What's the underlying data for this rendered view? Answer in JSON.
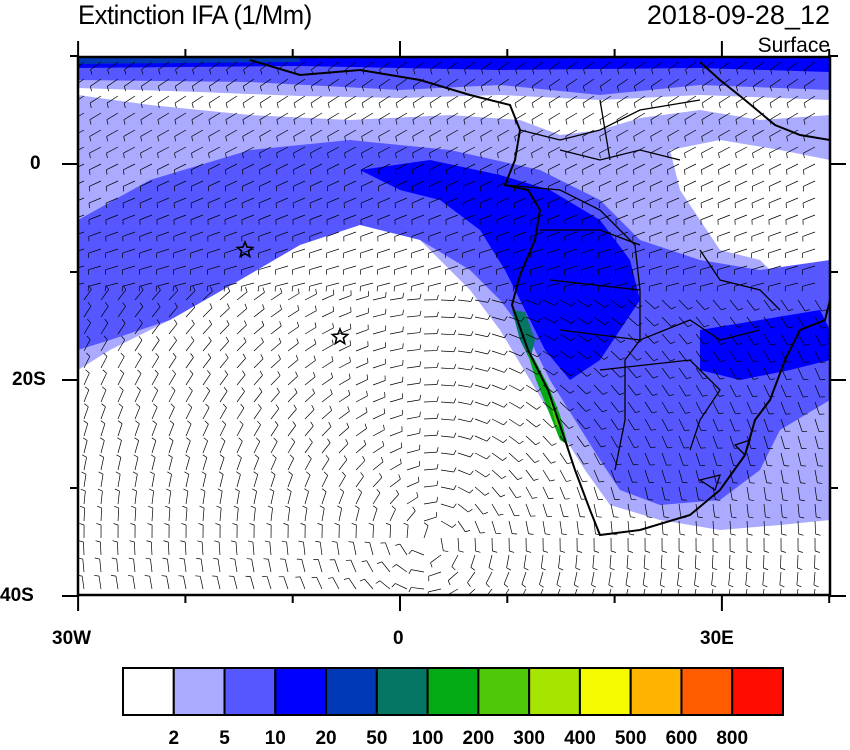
{
  "title": "Extinction IFA (1/Mm)",
  "date": "2018-09-28_12",
  "level": "Surface",
  "axes": {
    "x_ticks": [
      "30W",
      "0",
      "30E"
    ],
    "y_ticks": [
      "0",
      "20S",
      "40S"
    ]
  },
  "colorbar": {
    "colors": [
      "#ffffff",
      "#aaaaff",
      "#5757ff",
      "#0000ff",
      "#0039b5",
      "#047663",
      "#04ab14",
      "#4fc80a",
      "#a5e500",
      "#f4fa00",
      "#ffb400",
      "#ff5c00",
      "#ff0d00"
    ],
    "labels": [
      "2",
      "5",
      "10",
      "20",
      "50",
      "100",
      "200",
      "300",
      "400",
      "500",
      "600",
      "800"
    ]
  },
  "markers": [
    "star",
    "star"
  ],
  "overlays": {
    "wind": "wind-barbs",
    "borders": "country-borders"
  }
}
